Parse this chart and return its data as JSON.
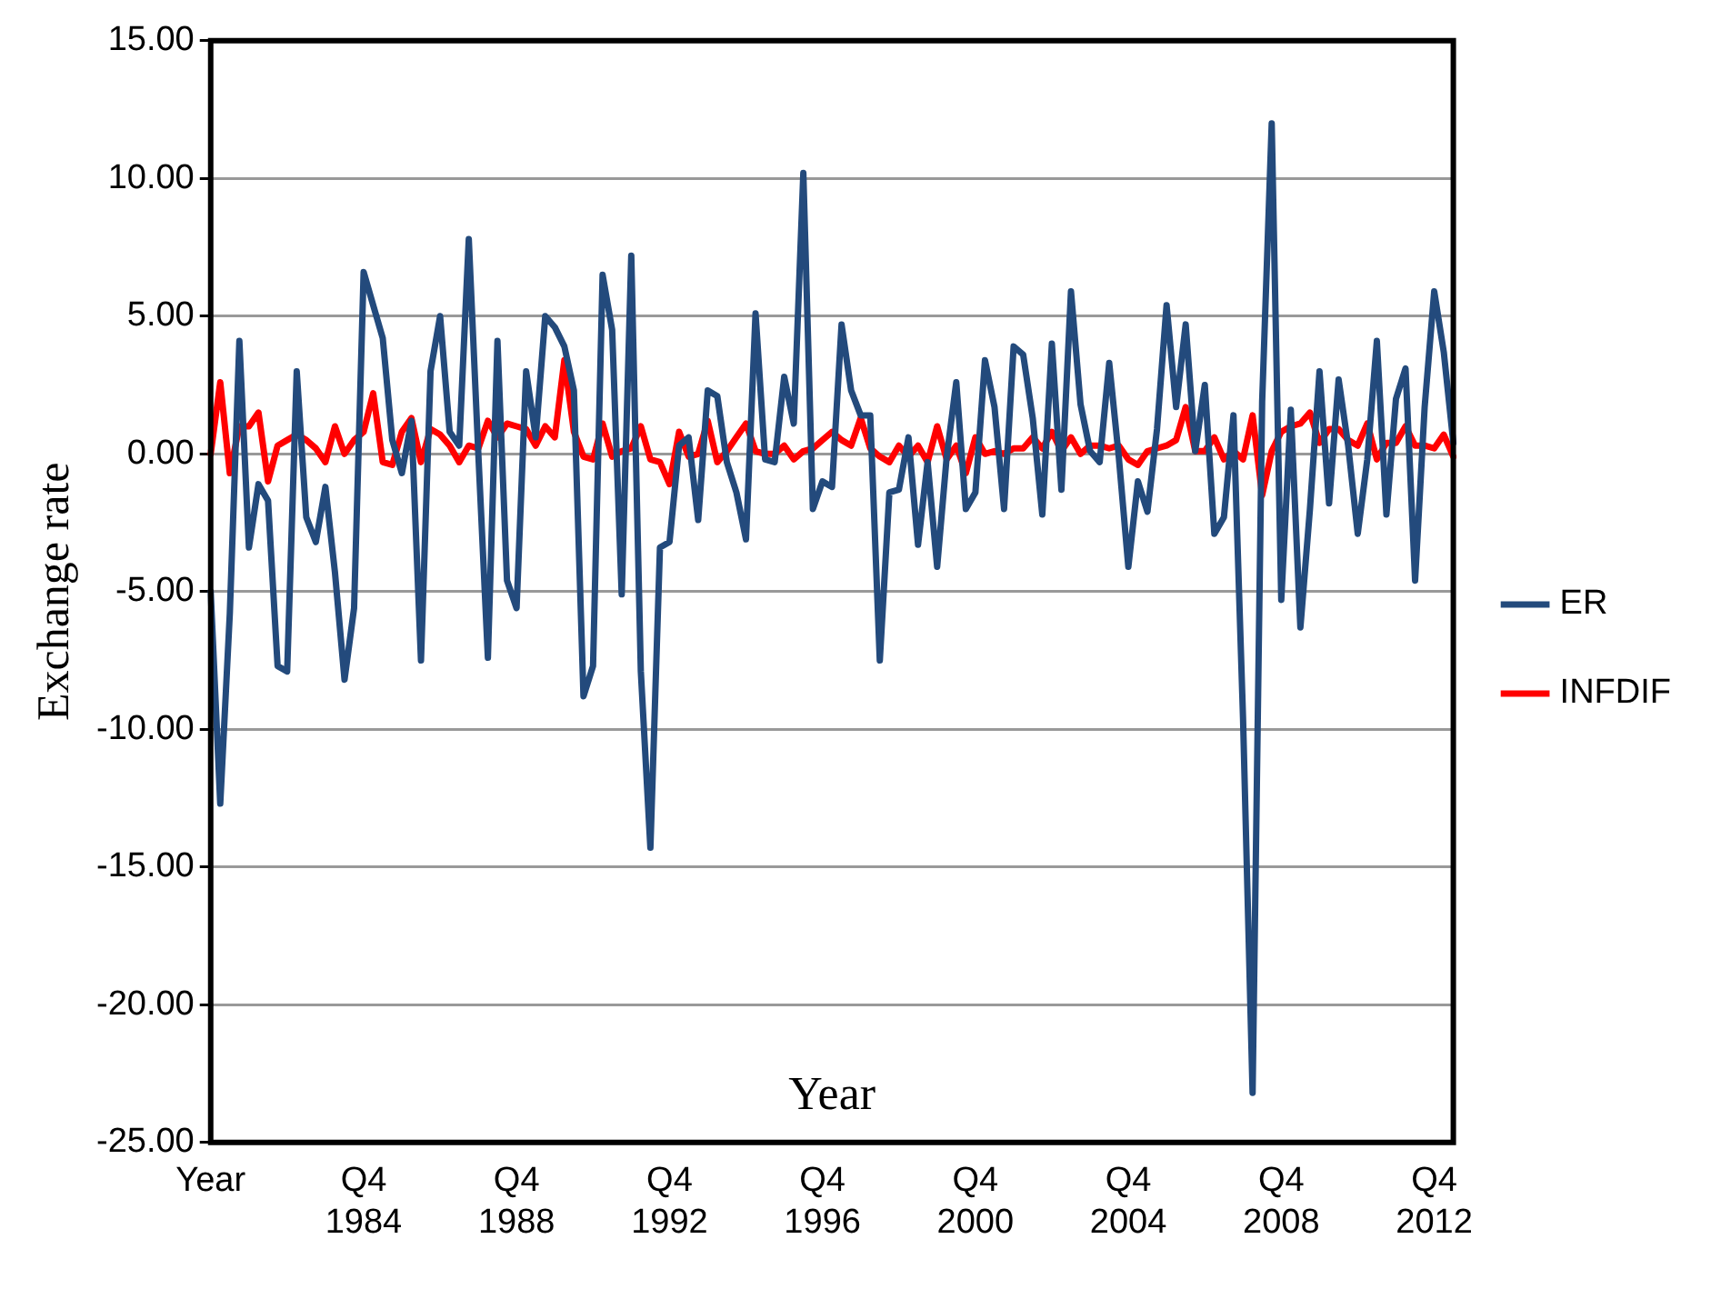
{
  "chart_data": {
    "type": "line",
    "xlabel": "Year",
    "ylabel": "Exchange rate",
    "categories": [
      "Year",
      null,
      null,
      null,
      null,
      null,
      null,
      null,
      null,
      null,
      null,
      null,
      null,
      null,
      null,
      null,
      "Q4 1984",
      null,
      null,
      null,
      null,
      null,
      null,
      null,
      null,
      null,
      null,
      null,
      null,
      null,
      null,
      null,
      "Q4 1988",
      null,
      null,
      null,
      null,
      null,
      null,
      null,
      null,
      null,
      null,
      null,
      null,
      null,
      null,
      null,
      "Q4 1992",
      null,
      null,
      null,
      null,
      null,
      null,
      null,
      null,
      null,
      null,
      null,
      null,
      null,
      null,
      null,
      "Q4 1996",
      null,
      null,
      null,
      null,
      null,
      null,
      null,
      null,
      null,
      null,
      null,
      null,
      null,
      null,
      null,
      "Q4 2000",
      null,
      null,
      null,
      null,
      null,
      null,
      null,
      null,
      null,
      null,
      null,
      null,
      null,
      null,
      null,
      "Q4 2004",
      null,
      null,
      null,
      null,
      null,
      null,
      null,
      null,
      null,
      null,
      null,
      null,
      null,
      null,
      null,
      "Q4 2008",
      null,
      null,
      null,
      null,
      null,
      null,
      null,
      null,
      null,
      null,
      null,
      null,
      null,
      null,
      null,
      "Q4 2012",
      null,
      null
    ],
    "series": [
      {
        "name": "ER",
        "color": "#234a7c",
        "values": [
          -5,
          -12.7,
          -5.8,
          4.1,
          -3.4,
          -1.1,
          -1.7,
          -7.7,
          -7.9,
          3.0,
          -2.3,
          -3.2,
          -1.2,
          -4.3,
          -8.2,
          -5.6,
          6.6,
          5.4,
          4.2,
          0.5,
          -0.7,
          1.2,
          -7.5,
          3.0,
          5.0,
          0.8,
          0.3,
          7.8,
          0.0,
          -7.4,
          4.1,
          -4.6,
          -5.6,
          3.0,
          0.6,
          5.0,
          4.6,
          3.9,
          2.3,
          -8.8,
          -7.7,
          6.5,
          4.5,
          -5.1,
          7.2,
          -7.9,
          -14.3,
          -3.4,
          -3.2,
          0.3,
          0.6,
          -2.4,
          2.3,
          2.1,
          -0.3,
          -1.4,
          -3.1,
          5.1,
          -0.2,
          -0.3,
          2.8,
          1.1,
          10.2,
          -2.0,
          -1.0,
          -1.2,
          4.7,
          2.3,
          1.4,
          1.4,
          -7.5,
          -1.4,
          -1.3,
          0.6,
          -3.3,
          -0.3,
          -4.1,
          -0.1,
          2.6,
          -2.0,
          -1.4,
          3.4,
          1.7,
          -2.0,
          3.9,
          3.6,
          1.3,
          -2.2,
          4.0,
          -1.3,
          5.9,
          1.8,
          0.1,
          -0.3,
          3.3,
          -0.1,
          -4.1,
          -1.0,
          -2.1,
          0.9,
          5.4,
          1.7,
          4.7,
          0.1,
          2.5,
          -2.9,
          -2.3,
          1.4,
          -9.6,
          -23.2,
          1.9,
          12.0,
          -5.3,
          1.6,
          -6.3,
          -2.0,
          3.0,
          -1.8,
          2.7,
          0.3,
          -2.9,
          -0.2,
          4.1,
          -2.2,
          2.0,
          3.1,
          -4.6,
          1.7,
          5.9,
          3.7,
          0.4
        ]
      },
      {
        "name": "INFDIF",
        "color": "#ff0000",
        "values": [
          0,
          2.6,
          -0.7,
          1.0,
          1.0,
          1.5,
          -1.0,
          0.3,
          0.5,
          0.7,
          0.5,
          0.2,
          -0.3,
          1.0,
          0,
          0.5,
          0.8,
          2.2,
          -0.3,
          -0.4,
          0.8,
          1.3,
          -0.3,
          0.9,
          0.7,
          0.3,
          -0.3,
          0.3,
          0.2,
          1.2,
          0.6,
          1.1,
          1.0,
          0.9,
          0.3,
          1.0,
          0.6,
          3.4,
          0.8,
          -0.1,
          -0.2,
          1.1,
          -0.1,
          0.1,
          0.2,
          1.0,
          -0.2,
          -0.3,
          -1.1,
          0.8,
          -0.1,
          0,
          1.2,
          -0.3,
          0.1,
          0.6,
          1.1,
          0.1,
          0,
          0,
          0.3,
          -0.2,
          0.1,
          0.2,
          0.5,
          0.8,
          0.5,
          0.3,
          1.3,
          0.2,
          -0.1,
          -0.3,
          0.3,
          -0.1,
          0.3,
          -0.3,
          1.0,
          -0.2,
          0.3,
          -0.7,
          0.6,
          0,
          0.1,
          0,
          0.2,
          0.2,
          0.6,
          0.2,
          0.8,
          0.1,
          0.6,
          0,
          0.3,
          0.3,
          0.2,
          0.3,
          -0.2,
          -0.4,
          0.1,
          0.2,
          0.3,
          0.5,
          1.7,
          0.1,
          0.1,
          0.6,
          -0.2,
          0.1,
          -0.2,
          1.4,
          -1.5,
          0.1,
          0.8,
          1.0,
          1.1,
          1.5,
          0.4,
          0.9,
          0.9,
          0.5,
          0.3,
          1.1,
          -0.2,
          0.4,
          0.4,
          1.0,
          0.3,
          0.3,
          0.2,
          0.7,
          -0.1
        ]
      }
    ],
    "ylim": [
      -25,
      15
    ],
    "yticks": [
      {
        "value": -25,
        "label": "-25.00"
      },
      {
        "value": -20,
        "label": "-20.00"
      },
      {
        "value": -15,
        "label": "-15.00"
      },
      {
        "value": -10,
        "label": "-10.00"
      },
      {
        "value": -5,
        "label": "-5.00"
      },
      {
        "value": 0,
        "label": "0.00"
      },
      {
        "value": 5,
        "label": "5.00"
      },
      {
        "value": 10,
        "label": "10.00"
      },
      {
        "value": 15,
        "label": "15.00"
      }
    ],
    "grid": "y",
    "legend": "right",
    "marker": "none",
    "line_style": "solid"
  }
}
